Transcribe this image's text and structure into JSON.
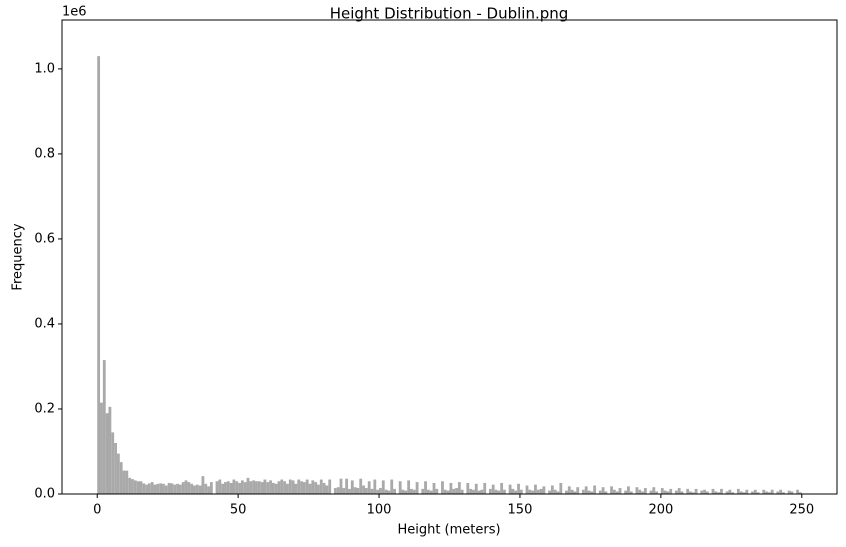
{
  "chart_data": {
    "type": "histogram",
    "title": "Height Distribution - Dublin.png",
    "xlabel": "Height (meters)",
    "ylabel": "Frequency",
    "y_offset_label": "1e6",
    "color": "#a9a9a9",
    "bins": [
      0,
      1,
      2,
      3,
      4,
      5,
      6,
      7,
      8,
      9,
      10,
      11,
      12,
      13,
      14,
      15,
      16,
      17,
      18,
      19,
      20,
      21,
      22,
      23,
      24,
      25,
      26,
      27,
      28,
      29,
      30,
      31,
      32,
      33,
      34,
      35,
      36,
      37,
      38,
      39,
      40,
      41,
      42,
      43,
      44,
      45,
      46,
      47,
      48,
      49,
      50,
      51,
      52,
      53,
      54,
      55,
      56,
      57,
      58,
      59,
      60,
      61,
      62,
      63,
      64,
      65,
      66,
      67,
      68,
      69,
      70,
      71,
      72,
      73,
      74,
      75,
      76,
      77,
      78,
      79,
      80,
      81,
      82,
      83,
      84,
      85,
      86,
      87,
      88,
      89,
      90,
      91,
      92,
      93,
      94,
      95,
      96,
      97,
      98,
      99,
      100,
      101,
      102,
      103,
      104,
      105,
      106,
      107,
      108,
      109,
      110,
      111,
      112,
      113,
      114,
      115,
      116,
      117,
      118,
      119,
      120,
      121,
      122,
      123,
      124,
      125,
      126,
      127,
      128,
      129,
      130,
      131,
      132,
      133,
      134,
      135,
      136,
      137,
      138,
      139,
      140,
      141,
      142,
      143,
      144,
      145,
      146,
      147,
      148,
      149,
      150,
      151,
      152,
      153,
      154,
      155,
      156,
      157,
      158,
      159,
      160,
      161,
      162,
      163,
      164,
      165,
      166,
      167,
      168,
      169,
      170,
      171,
      172,
      173,
      174,
      175,
      176,
      177,
      178,
      179,
      180,
      181,
      182,
      183,
      184,
      185,
      186,
      187,
      188,
      189,
      190,
      191,
      192,
      193,
      194,
      195,
      196,
      197,
      198,
      199,
      200,
      201,
      202,
      203,
      204,
      205,
      206,
      207,
      208,
      209,
      210,
      211,
      212,
      213,
      214,
      215,
      216,
      217,
      218,
      219,
      220,
      221,
      222,
      223,
      224,
      225,
      226,
      227,
      228,
      229,
      230,
      231,
      232,
      233,
      234,
      235,
      236,
      237,
      238,
      239,
      240,
      241,
      242,
      243,
      244,
      245,
      246,
      247,
      248,
      249,
      250
    ],
    "values": [
      1030000,
      215000,
      315000,
      190000,
      205000,
      145000,
      120000,
      95000,
      75000,
      55000,
      55000,
      38000,
      35000,
      32000,
      30000,
      30000,
      25000,
      22000,
      25000,
      28000,
      22000,
      24000,
      25000,
      24000,
      20000,
      26000,
      25000,
      22000,
      24000,
      22000,
      28000,
      32000,
      28000,
      24000,
      20000,
      22000,
      20000,
      42000,
      24000,
      18000,
      28000,
      0,
      30000,
      34000,
      24000,
      28000,
      30000,
      26000,
      34000,
      30000,
      26000,
      32000,
      28000,
      38000,
      30000,
      32000,
      30000,
      30000,
      28000,
      34000,
      28000,
      32000,
      26000,
      24000,
      30000,
      34000,
      30000,
      24000,
      34000,
      32000,
      24000,
      34000,
      30000,
      28000,
      34000,
      24000,
      32000,
      28000,
      22000,
      34000,
      26000,
      20000,
      34000,
      0,
      14000,
      16000,
      36000,
      14000,
      36000,
      12000,
      32000,
      16000,
      14000,
      36000,
      20000,
      14000,
      30000,
      12000,
      34000,
      10000,
      14000,
      32000,
      10000,
      8000,
      34000,
      12000,
      0,
      30000,
      10000,
      8000,
      32000,
      12000,
      10000,
      28000,
      0,
      12000,
      30000,
      10000,
      8000,
      26000,
      12000,
      0,
      30000,
      10000,
      8000,
      26000,
      12000,
      14000,
      28000,
      10000,
      0,
      26000,
      12000,
      10000,
      24000,
      8000,
      10000,
      26000,
      0,
      12000,
      22000,
      10000,
      8000,
      26000,
      10000,
      0,
      22000,
      12000,
      8000,
      24000,
      10000,
      0,
      20000,
      10000,
      8000,
      22000,
      10000,
      12000,
      18000,
      0,
      8000,
      20000,
      10000,
      6000,
      26000,
      0,
      8000,
      18000,
      10000,
      6000,
      16000,
      0,
      10000,
      18000,
      8000,
      6000,
      20000,
      0,
      8000,
      16000,
      6000,
      0,
      18000,
      10000,
      6000,
      14000,
      0,
      8000,
      18000,
      6000,
      0,
      16000,
      10000,
      6000,
      14000,
      0,
      8000,
      16000,
      6000,
      0,
      14000,
      8000,
      6000,
      12000,
      0,
      8000,
      14000,
      6000,
      0,
      12000,
      6000,
      4000,
      12000,
      0,
      8000,
      10000,
      6000,
      0,
      12000,
      6000,
      4000,
      12000,
      0,
      6000,
      10000,
      4000,
      0,
      12000,
      6000,
      4000,
      10000,
      0,
      6000,
      10000,
      4000,
      0,
      10000,
      6000,
      4000,
      10000,
      0,
      6000,
      10000,
      4000,
      0,
      8000,
      6000,
      0,
      10000,
      4000
    ],
    "xlim": [
      -12.5,
      262.5
    ],
    "xticks": [
      0,
      50,
      100,
      150,
      200,
      250
    ],
    "ylim": [
      0,
      1115000
    ],
    "yticks": [
      {
        "value": 0,
        "label": "0.0"
      },
      {
        "value": 200000,
        "label": "0.2"
      },
      {
        "value": 400000,
        "label": "0.4"
      },
      {
        "value": 600000,
        "label": "0.6"
      },
      {
        "value": 800000,
        "label": "0.8"
      },
      {
        "value": 1000000,
        "label": "1.0"
      }
    ],
    "grid": false
  }
}
